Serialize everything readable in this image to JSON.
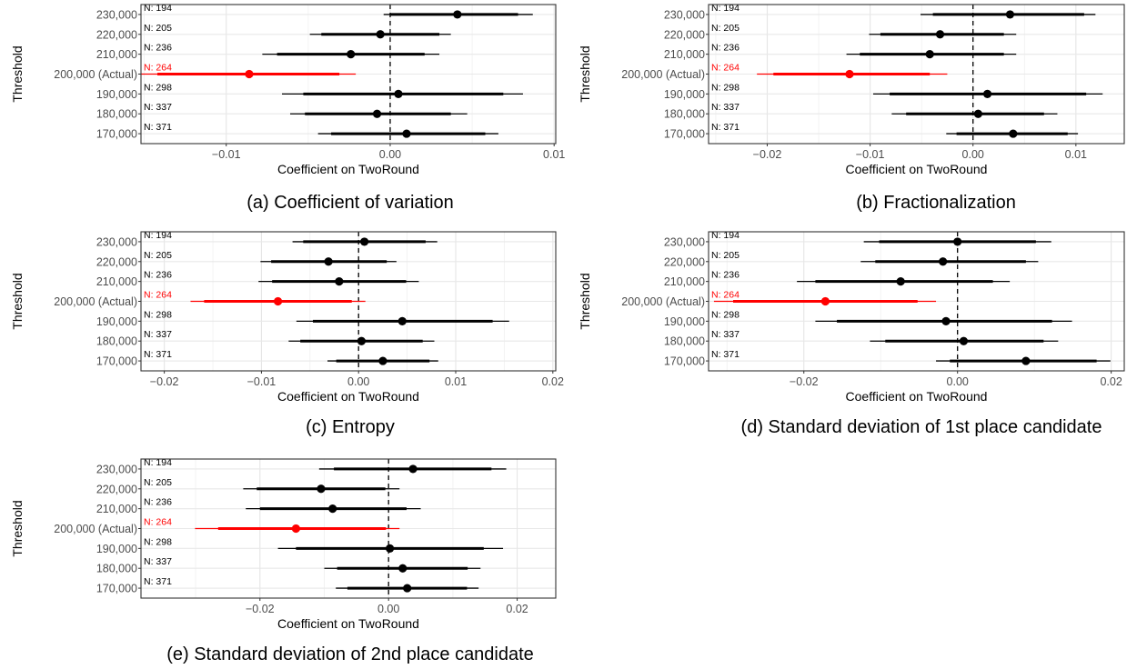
{
  "chart_data": [
    {
      "type": "coefficient-plot",
      "caption": "(a) Coefficient of variation",
      "xlabel": "Coefficient on TwoRound",
      "ylabel": "Threshold",
      "xlim": [
        -0.0152,
        0.0101
      ],
      "xticks": [
        -0.01,
        0,
        0.01
      ],
      "xtick_labels": [
        "−0.01",
        "0.00",
        "0.01"
      ],
      "highlight_color": "#ff0000",
      "rows": [
        {
          "label": "230,000",
          "n": "N: 194",
          "est": 0.0041,
          "ci90": [
            -0.0,
            0.0078
          ],
          "ci95": [
            -0.0004,
            0.0087
          ],
          "highlight": false
        },
        {
          "label": "220,000",
          "n": "N: 205",
          "est": -0.0006,
          "ci90": [
            -0.0042,
            0.003
          ],
          "ci95": [
            -0.0049,
            0.0037
          ],
          "highlight": false
        },
        {
          "label": "210,000",
          "n": "N: 236",
          "est": -0.0024,
          "ci90": [
            -0.0069,
            0.0021
          ],
          "ci95": [
            -0.0078,
            0.003
          ],
          "highlight": false
        },
        {
          "label": "200,000 (Actual)",
          "n": "N: 264",
          "est": -0.0086,
          "ci90": [
            -0.0142,
            -0.0031
          ],
          "ci95": [
            -0.0152,
            -0.0021
          ],
          "highlight": true
        },
        {
          "label": "190,000",
          "n": "N: 298",
          "est": 0.0005,
          "ci90": [
            -0.0053,
            0.0069
          ],
          "ci95": [
            -0.0066,
            0.0081
          ],
          "highlight": false
        },
        {
          "label": "180,000",
          "n": "N: 337",
          "est": -0.0008,
          "ci90": [
            -0.0052,
            0.0037
          ],
          "ci95": [
            -0.0061,
            0.0047
          ],
          "highlight": false
        },
        {
          "label": "170,000",
          "n": "N: 371",
          "est": 0.001,
          "ci90": [
            -0.0036,
            0.0058
          ],
          "ci95": [
            -0.0044,
            0.0066
          ],
          "highlight": false
        }
      ]
    },
    {
      "type": "coefficient-plot",
      "caption": "(b) Fractionalization",
      "xlabel": "Coefficient on TwoRound",
      "ylabel": "Threshold",
      "xlim": [
        -0.0257,
        0.0147
      ],
      "xticks": [
        -0.02,
        -0.01,
        0,
        0.01
      ],
      "xtick_labels": [
        "−0.02",
        "−0.01",
        "0.00",
        "0.01"
      ],
      "highlight_color": "#ff0000",
      "rows": [
        {
          "label": "230,000",
          "n": "N: 194",
          "est": 0.0036,
          "ci90": [
            -0.0039,
            0.0108
          ],
          "ci95": [
            -0.0051,
            0.0119
          ],
          "highlight": false
        },
        {
          "label": "220,000",
          "n": "N: 205",
          "est": -0.0032,
          "ci90": [
            -0.009,
            0.003
          ],
          "ci95": [
            -0.0101,
            0.0042
          ],
          "highlight": false
        },
        {
          "label": "210,000",
          "n": "N: 236",
          "est": -0.0042,
          "ci90": [
            -0.011,
            0.003
          ],
          "ci95": [
            -0.0123,
            0.0042
          ],
          "highlight": false
        },
        {
          "label": "200,000 (Actual)",
          "n": "N: 264",
          "est": -0.012,
          "ci90": [
            -0.0194,
            -0.0042
          ],
          "ci95": [
            -0.021,
            -0.0025
          ],
          "highlight": true
        },
        {
          "label": "190,000",
          "n": "N: 298",
          "est": 0.0014,
          "ci90": [
            -0.0081,
            0.011
          ],
          "ci95": [
            -0.0097,
            0.0126
          ],
          "highlight": false
        },
        {
          "label": "180,000",
          "n": "N: 337",
          "est": 0.0005,
          "ci90": [
            -0.0065,
            0.0069
          ],
          "ci95": [
            -0.0079,
            0.0082
          ],
          "highlight": false
        },
        {
          "label": "170,000",
          "n": "N: 371",
          "est": 0.0039,
          "ci90": [
            -0.0016,
            0.0092
          ],
          "ci95": [
            -0.0026,
            0.0102
          ],
          "highlight": false
        }
      ]
    },
    {
      "type": "coefficient-plot",
      "caption": "(c) Entropy",
      "xlabel": "Coefficient on TwoRound",
      "ylabel": "Threshold",
      "xlim": [
        -0.0224,
        0.0203
      ],
      "xticks": [
        -0.02,
        -0.01,
        0,
        0.01,
        0.02
      ],
      "xtick_labels": [
        "−0.02",
        "−0.01",
        "0.00",
        "0.01",
        "0.02"
      ],
      "highlight_color": "#ff0000",
      "rows": [
        {
          "label": "230,000",
          "n": "N: 194",
          "est": 0.0006,
          "ci90": [
            -0.0057,
            0.0069
          ],
          "ci95": [
            -0.0068,
            0.0081
          ],
          "highlight": false
        },
        {
          "label": "220,000",
          "n": "N: 205",
          "est": -0.0031,
          "ci90": [
            -0.009,
            0.0029
          ],
          "ci95": [
            -0.0101,
            0.0039
          ],
          "highlight": false
        },
        {
          "label": "210,000",
          "n": "N: 236",
          "est": -0.002,
          "ci90": [
            -0.0089,
            0.0049
          ],
          "ci95": [
            -0.0103,
            0.0062
          ],
          "highlight": false
        },
        {
          "label": "200,000 (Actual)",
          "n": "N: 264",
          "est": -0.0083,
          "ci90": [
            -0.0159,
            -0.0007
          ],
          "ci95": [
            -0.0173,
            0.0007
          ],
          "highlight": true
        },
        {
          "label": "190,000",
          "n": "N: 298",
          "est": 0.0045,
          "ci90": [
            -0.0047,
            0.0138
          ],
          "ci95": [
            -0.0064,
            0.0155
          ],
          "highlight": false
        },
        {
          "label": "180,000",
          "n": "N: 337",
          "est": 0.0003,
          "ci90": [
            -0.006,
            0.0066
          ],
          "ci95": [
            -0.0072,
            0.0078
          ],
          "highlight": false
        },
        {
          "label": "170,000",
          "n": "N: 371",
          "est": 0.0025,
          "ci90": [
            -0.0023,
            0.0073
          ],
          "ci95": [
            -0.0032,
            0.0082
          ],
          "highlight": false
        }
      ]
    },
    {
      "type": "coefficient-plot",
      "caption": "(d) Standard deviation of 1st place candidate",
      "xlabel": "Coefficient on TwoRound",
      "ylabel": "Threshold",
      "xlim": [
        -0.0324,
        0.0217
      ],
      "xticks": [
        -0.02,
        0,
        0.02
      ],
      "xtick_labels": [
        "−0.02",
        "0.00",
        "0.02"
      ],
      "highlight_color": "#ff0000",
      "rows": [
        {
          "label": "230,000",
          "n": "N: 194",
          "est": 0.0,
          "ci90": [
            -0.0102,
            0.0102
          ],
          "ci95": [
            -0.0122,
            0.0122
          ],
          "highlight": false
        },
        {
          "label": "220,000",
          "n": "N: 205",
          "est": -0.0019,
          "ci90": [
            -0.0107,
            0.0089
          ],
          "ci95": [
            -0.0126,
            0.0105
          ],
          "highlight": false
        },
        {
          "label": "210,000",
          "n": "N: 236",
          "est": -0.0074,
          "ci90": [
            -0.0185,
            0.0046
          ],
          "ci95": [
            -0.0209,
            0.0068
          ],
          "highlight": false
        },
        {
          "label": "200,000 (Actual)",
          "n": "N: 264",
          "est": -0.0172,
          "ci90": [
            -0.0292,
            -0.0052
          ],
          "ci95": [
            -0.0317,
            -0.0028
          ],
          "highlight": true
        },
        {
          "label": "190,000",
          "n": "N: 298",
          "est": -0.0015,
          "ci90": [
            -0.0157,
            0.0123
          ],
          "ci95": [
            -0.0185,
            0.0149
          ],
          "highlight": false
        },
        {
          "label": "180,000",
          "n": "N: 337",
          "est": 0.0008,
          "ci90": [
            -0.0094,
            0.0112
          ],
          "ci95": [
            -0.0114,
            0.0131
          ],
          "highlight": false
        },
        {
          "label": "170,000",
          "n": "N: 371",
          "est": 0.0089,
          "ci90": [
            -0.001,
            0.0181
          ],
          "ci95": [
            -0.0028,
            0.0199
          ],
          "highlight": false
        }
      ]
    },
    {
      "type": "coefficient-plot",
      "caption": "(e) Standard deviation of 2nd place candidate",
      "xlabel": "Coefficient on TwoRound",
      "ylabel": "Threshold",
      "xlim": [
        -0.0385,
        0.026
      ],
      "xticks": [
        -0.02,
        0,
        0.02
      ],
      "xtick_labels": [
        "−0.02",
        "0.00",
        "0.02"
      ],
      "highlight_color": "#ff0000",
      "rows": [
        {
          "label": "230,000",
          "n": "N: 194",
          "est": 0.0038,
          "ci90": [
            -0.0085,
            0.016
          ],
          "ci95": [
            -0.0108,
            0.0183
          ],
          "highlight": false
        },
        {
          "label": "220,000",
          "n": "N: 205",
          "est": -0.0105,
          "ci90": [
            -0.0205,
            -0.0005
          ],
          "ci95": [
            -0.0226,
            0.0017
          ],
          "highlight": false
        },
        {
          "label": "210,000",
          "n": "N: 236",
          "est": -0.0087,
          "ci90": [
            -0.02,
            0.0028
          ],
          "ci95": [
            -0.0222,
            0.005
          ],
          "highlight": false
        },
        {
          "label": "200,000 (Actual)",
          "n": "N: 264",
          "est": -0.0144,
          "ci90": [
            -0.0265,
            -0.0004
          ],
          "ci95": [
            -0.0301,
            0.0017
          ],
          "highlight": true
        },
        {
          "label": "190,000",
          "n": "N: 298",
          "est": 0.0002,
          "ci90": [
            -0.0144,
            0.0148
          ],
          "ci95": [
            -0.0172,
            0.0178
          ],
          "highlight": false
        },
        {
          "label": "180,000",
          "n": "N: 337",
          "est": 0.0022,
          "ci90": [
            -0.008,
            0.0123
          ],
          "ci95": [
            -0.01,
            0.0143
          ],
          "highlight": false
        },
        {
          "label": "170,000",
          "n": "N: 371",
          "est": 0.0029,
          "ci90": [
            -0.0064,
            0.0122
          ],
          "ci95": [
            -0.0082,
            0.014
          ],
          "highlight": false
        }
      ]
    }
  ]
}
